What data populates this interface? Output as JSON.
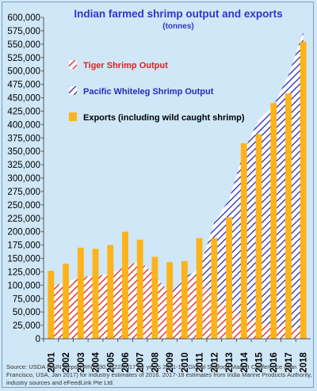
{
  "chart_data": {
    "type": "area",
    "title": "Indian farmed shrimp output and exports",
    "subtitle": "(tonnes)",
    "categories": [
      "2001",
      "2002",
      "2003",
      "2004",
      "2005",
      "2006",
      "2007",
      "2008",
      "2009",
      "2010",
      "2011",
      "2012",
      "2013",
      "2014",
      "2015",
      "2016",
      "2017",
      "2018"
    ],
    "ylim": [
      0,
      600000
    ],
    "yticks": [
      0,
      25000,
      50000,
      75000,
      100000,
      125000,
      150000,
      175000,
      200000,
      225000,
      250000,
      275000,
      300000,
      325000,
      350000,
      375000,
      400000,
      425000,
      450000,
      475000,
      500000,
      525000,
      550000,
      575000,
      600000
    ],
    "ytick_labels": [
      "0",
      "25,000",
      "50,000",
      "75,000",
      "100,000",
      "125,000",
      "150,000",
      "175,000",
      "200,000",
      "225,000",
      "250,000",
      "275,000",
      "300,000",
      "325,000",
      "350,000",
      "375,000",
      "400,000",
      "425,000",
      "450,000",
      "475,000",
      "500,000",
      "525,000",
      "550,000",
      "575,000",
      "600,000"
    ],
    "series": [
      {
        "name": "Tiger Shrimp Output",
        "kind": "stacked-area",
        "color": "#e0201c",
        "values": [
          98000,
          105000,
          115000,
          118000,
          120000,
          135000,
          145000,
          118000,
          80000,
          110000,
          120000,
          72000,
          60000,
          40000,
          30000,
          25000,
          22000,
          18000
        ]
      },
      {
        "name": "Pacific Whiteleg Shrimp Output",
        "kind": "stacked-area",
        "color": "#2a2ab8",
        "values": [
          0,
          0,
          0,
          0,
          0,
          0,
          0,
          0,
          5000,
          5000,
          10000,
          145000,
          200000,
          310000,
          380000,
          410000,
          470000,
          555000
        ]
      },
      {
        "name": "Exports (including wild caught shrimp)",
        "kind": "bar",
        "color": "#ffb31a",
        "values": [
          127000,
          140000,
          170000,
          168000,
          175000,
          200000,
          185000,
          153000,
          143000,
          145000,
          188000,
          188000,
          227000,
          365000,
          382000,
          440000,
          458000,
          555000
        ]
      }
    ],
    "legend_position": "top-left",
    "grid": false
  },
  "source_text": "Source: USDA GAIN Report #IN7030, 2/22/2017 for years 2001-15,  Global Seafood Market Conference (San Francisco, USA, Jan 2017) for industry estimates of 2016. 2017-18 estimates from India Marine Products Authority, industry sources and eFeedLink Pte Ltd."
}
